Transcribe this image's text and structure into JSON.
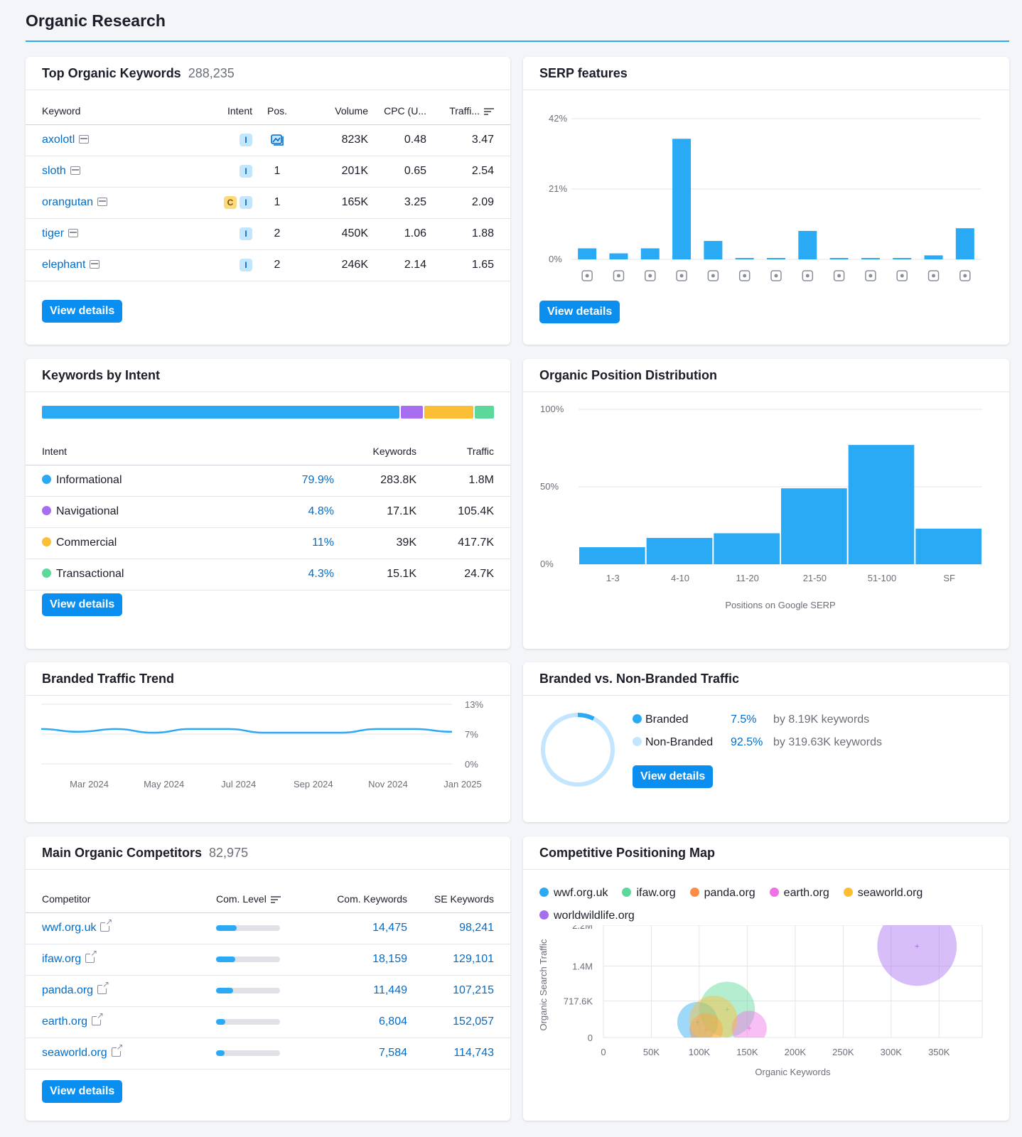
{
  "page": {
    "title": "Organic Research"
  },
  "top_keywords": {
    "title": "Top Organic Keywords",
    "count": "288,235",
    "columns": {
      "keyword": "Keyword",
      "intent": "Intent",
      "pos": "Pos.",
      "volume": "Volume",
      "cpc": "CPC (U...",
      "traffic": "Traffi..."
    },
    "rows": [
      {
        "keyword": "axolotl",
        "intents": [
          "I"
        ],
        "pos": "",
        "pos_icon": "image-serp-icon",
        "volume": "823K",
        "cpc": "0.48",
        "traffic": "3.47"
      },
      {
        "keyword": "sloth",
        "intents": [
          "I"
        ],
        "pos": "1",
        "volume": "201K",
        "cpc": "0.65",
        "traffic": "2.54"
      },
      {
        "keyword": "orangutan",
        "intents": [
          "C",
          "I"
        ],
        "pos": "1",
        "volume": "165K",
        "cpc": "3.25",
        "traffic": "2.09"
      },
      {
        "keyword": "tiger",
        "intents": [
          "I"
        ],
        "pos": "2",
        "volume": "450K",
        "cpc": "1.06",
        "traffic": "1.88"
      },
      {
        "keyword": "elephant",
        "intents": [
          "I"
        ],
        "pos": "2",
        "volume": "246K",
        "cpc": "2.14",
        "traffic": "1.65"
      }
    ],
    "button": "View details"
  },
  "serp_features": {
    "title": "SERP features",
    "button": "View details",
    "icons": [
      "crown-icon",
      "link-icon",
      "diamond-icon",
      "image-icon",
      "image-pack-icon",
      "video-icon",
      "video-play-icon",
      "comment-icon",
      "location-pin-icon",
      "graduation-cap-icon",
      "document-icon",
      "tag-icon",
      "list-icon"
    ]
  },
  "keywords_by_intent": {
    "title": "Keywords by Intent",
    "columns": {
      "intent": "Intent",
      "keywords": "Keywords",
      "traffic": "Traffic"
    },
    "rows": [
      {
        "intent": "Informational",
        "color": "#2aaaf5",
        "share": "79.9%",
        "keywords": "283.8K",
        "traffic": "1.8M"
      },
      {
        "intent": "Navigational",
        "color": "#a76ef2",
        "share": "4.8%",
        "keywords": "17.1K",
        "traffic": "105.4K"
      },
      {
        "intent": "Commercial",
        "color": "#fcbe35",
        "share": "11%",
        "keywords": "39K",
        "traffic": "417.7K"
      },
      {
        "intent": "Transactional",
        "color": "#5bd89a",
        "share": "4.3%",
        "keywords": "15.1K",
        "traffic": "24.7K"
      }
    ],
    "button": "View details"
  },
  "position_distribution": {
    "title": "Organic Position Distribution",
    "xlabel": "Positions on Google SERP"
  },
  "branded_trend": {
    "title": "Branded Traffic Trend"
  },
  "branded_vs_non": {
    "title": "Branded vs. Non-Branded Traffic",
    "rows": [
      {
        "label": "Branded",
        "color": "#2aaaf5",
        "pct": "7.5%",
        "detail": "by 8.19K keywords"
      },
      {
        "label": "Non-Branded",
        "color": "#c4e5fe",
        "pct": "92.5%",
        "detail": "by 319.63K keywords"
      }
    ],
    "button": "View details"
  },
  "competitors": {
    "title": "Main Organic Competitors",
    "count": "82,975",
    "columns": {
      "competitor": "Competitor",
      "level": "Com. Level",
      "com_keywords": "Com. Keywords",
      "se_keywords": "SE Keywords"
    },
    "rows": [
      {
        "domain": "wwf.org.uk",
        "level": 0.32,
        "com_keywords": "14,475",
        "se_keywords": "98,241"
      },
      {
        "domain": "ifaw.org",
        "level": 0.3,
        "com_keywords": "18,159",
        "se_keywords": "129,101"
      },
      {
        "domain": "panda.org",
        "level": 0.27,
        "com_keywords": "11,449",
        "se_keywords": "107,215"
      },
      {
        "domain": "earth.org",
        "level": 0.14,
        "com_keywords": "6,804",
        "se_keywords": "152,057"
      },
      {
        "domain": "seaworld.org",
        "level": 0.13,
        "com_keywords": "7,584",
        "se_keywords": "114,743"
      }
    ],
    "button": "View details"
  },
  "positioning_map": {
    "title": "Competitive Positioning Map",
    "legend": [
      {
        "name": "wwf.org.uk",
        "color": "#2aaaf5"
      },
      {
        "name": "ifaw.org",
        "color": "#5bd89a"
      },
      {
        "name": "panda.org",
        "color": "#ff8c43"
      },
      {
        "name": "earth.org",
        "color": "#f070e6"
      },
      {
        "name": "seaworld.org",
        "color": "#fcbe35"
      },
      {
        "name": "worldwildlife.org",
        "color": "#a76ef2"
      }
    ]
  },
  "chart_data": [
    {
      "type": "bar",
      "id": "serp",
      "title": "SERP features",
      "categories": [
        "Featured snippet",
        "Sitelinks",
        "Knowledge panel",
        "Image",
        "Image pack",
        "Video",
        "Video carousel",
        "Reviews",
        "Local pack",
        "Knowledge card",
        "People also ask",
        "Shopping",
        "Site list"
      ],
      "values": [
        3.3,
        1.8,
        3.3,
        36,
        5.5,
        0.4,
        0.4,
        8.5,
        0.4,
        0.4,
        0.4,
        1.2,
        9.3
      ],
      "ylim": [
        0,
        42
      ],
      "yticks": [
        "42%",
        "21%",
        "0%"
      ]
    },
    {
      "type": "bar",
      "id": "intent_share",
      "categories": [
        "Informational",
        "Navigational",
        "Commercial",
        "Transactional"
      ],
      "values": [
        79.9,
        4.8,
        11,
        4.3
      ]
    },
    {
      "type": "bar",
      "id": "positions",
      "title": "Organic Position Distribution",
      "categories": [
        "1-3",
        "4-10",
        "11-20",
        "21-50",
        "51-100",
        "SF"
      ],
      "values": [
        11,
        17,
        20,
        49,
        77,
        23
      ],
      "ylim": [
        0,
        100
      ],
      "yticks": [
        "100%",
        "50%",
        "0%"
      ],
      "xlabel": "Positions on Google SERP"
    },
    {
      "type": "line",
      "id": "branded_trend",
      "title": "Branded Traffic Trend",
      "x": [
        "Feb 2024",
        "Mar 2024",
        "Apr 2024",
        "May 2024",
        "Jun 2024",
        "Jul 2024",
        "Aug 2024",
        "Sep 2024",
        "Oct 2024",
        "Nov 2024",
        "Dec 2024",
        "Jan 2025"
      ],
      "xticks": [
        "Mar 2024",
        "May 2024",
        "Jul 2024",
        "Sep 2024",
        "Nov 2024",
        "Jan 2025"
      ],
      "values": [
        7.6,
        7.0,
        7.6,
        6.8,
        7.6,
        7.6,
        6.8,
        6.8,
        6.8,
        7.6,
        7.6,
        7.0
      ],
      "ylim": [
        0,
        13
      ],
      "yticks": [
        "13%",
        "7%",
        "0%"
      ]
    },
    {
      "type": "pie",
      "id": "branded_split",
      "categories": [
        "Branded",
        "Non-Branded"
      ],
      "values": [
        7.5,
        92.5
      ]
    },
    {
      "type": "scatter",
      "id": "positioning",
      "title": "Competitive Positioning Map",
      "xlabel": "Organic Keywords",
      "ylabel": "Organic Search Traffic",
      "xlim": [
        0,
        400000
      ],
      "ylim": [
        0,
        2200000
      ],
      "xticks": [
        "0",
        "50K",
        "100K",
        "150K",
        "200K",
        "250K",
        "300K",
        "350K"
      ],
      "yticks": [
        "2.2M",
        "1.4M",
        "717.6K",
        "0"
      ],
      "series": [
        {
          "name": "wwf.org.uk",
          "x": 98241,
          "y": 300000,
          "r": 22
        },
        {
          "name": "ifaw.org",
          "x": 129101,
          "y": 550000,
          "r": 30
        },
        {
          "name": "panda.org",
          "x": 107215,
          "y": 150000,
          "r": 18
        },
        {
          "name": "earth.org",
          "x": 152057,
          "y": 180000,
          "r": 19
        },
        {
          "name": "seaworld.org",
          "x": 114743,
          "y": 350000,
          "r": 26
        },
        {
          "name": "worldwildlife.org",
          "x": 327000,
          "y": 1790000,
          "r": 43
        }
      ]
    }
  ]
}
